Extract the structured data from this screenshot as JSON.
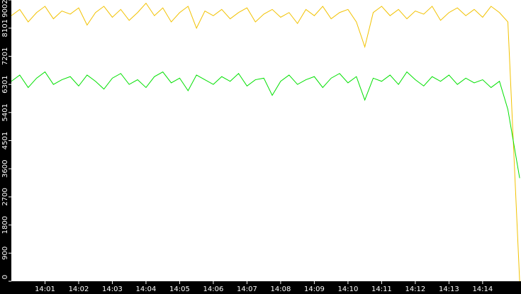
{
  "chart_data": {
    "type": "line",
    "x": [
      0,
      0.25,
      0.5,
      0.75,
      1,
      1.25,
      1.5,
      1.75,
      2,
      2.25,
      2.5,
      2.75,
      3,
      3.25,
      3.5,
      3.75,
      4,
      4.25,
      4.5,
      4.75,
      5,
      5.25,
      5.5,
      5.75,
      6,
      6.25,
      6.5,
      6.75,
      7,
      7.25,
      7.5,
      7.75,
      8,
      8.25,
      8.5,
      8.75,
      9,
      9.25,
      9.5,
      9.75,
      10,
      10.25,
      10.5,
      10.75,
      11,
      11.25,
      11.5,
      11.75,
      12,
      12.25,
      12.5,
      12.75,
      13,
      13.25,
      13.5,
      13.75,
      14,
      14.25,
      14.5,
      14.75,
      15.1
    ],
    "series": [
      {
        "color": "#f2c200",
        "values": [
          8500,
          8700,
          8300,
          8600,
          8800,
          8400,
          8650,
          8550,
          8750,
          8200,
          8600,
          8800,
          8450,
          8700,
          8350,
          8600,
          8900,
          8500,
          8750,
          8300,
          8600,
          8800,
          8100,
          8650,
          8500,
          8700,
          8400,
          8600,
          8750,
          8300,
          8550,
          8700,
          8450,
          8600,
          8250,
          8700,
          8500,
          8800,
          8400,
          8600,
          8700,
          8300,
          7500,
          8600,
          8800,
          8500,
          8700,
          8400,
          8650,
          8550,
          8800,
          8350,
          8600,
          8750,
          8500,
          8700,
          8450,
          8800,
          8600,
          8300,
          0
        ]
      },
      {
        "color": "#00e000",
        "values": [
          6400,
          6600,
          6200,
          6500,
          6700,
          6300,
          6450,
          6550,
          6250,
          6600,
          6400,
          6150,
          6500,
          6650,
          6300,
          6450,
          6200,
          6550,
          6700,
          6350,
          6500,
          6100,
          6600,
          6450,
          6300,
          6550,
          6400,
          6650,
          6250,
          6450,
          6500,
          5950,
          6400,
          6600,
          6300,
          6450,
          6550,
          6200,
          6500,
          6650,
          6350,
          6550,
          5800,
          6500,
          6400,
          6600,
          6300,
          6700,
          6450,
          6250,
          6550,
          6400,
          6600,
          6300,
          6500,
          6350,
          6450,
          6200,
          6400,
          5500,
          3300
        ]
      }
    ],
    "xlim": [
      0,
      15.14
    ],
    "xticks": [
      {
        "value": 1,
        "label": "14:01"
      },
      {
        "value": 2,
        "label": "14:02"
      },
      {
        "value": 3,
        "label": "14:03"
      },
      {
        "value": 4,
        "label": "14:04"
      },
      {
        "value": 5,
        "label": "14:05"
      },
      {
        "value": 6,
        "label": "14:06"
      },
      {
        "value": 7,
        "label": "14:07"
      },
      {
        "value": 8,
        "label": "14:08"
      },
      {
        "value": 9,
        "label": "14:09"
      },
      {
        "value": 10,
        "label": "14:10"
      },
      {
        "value": 11,
        "label": "14:11"
      },
      {
        "value": 12,
        "label": "14:12"
      },
      {
        "value": 13,
        "label": "14:13"
      },
      {
        "value": 14,
        "label": "14:14"
      }
    ],
    "ylim": [
      0,
      9002
    ],
    "yticks": [
      0,
      900,
      1800,
      2700,
      3600,
      4501,
      5401,
      6301,
      7201,
      8101,
      9002
    ]
  }
}
